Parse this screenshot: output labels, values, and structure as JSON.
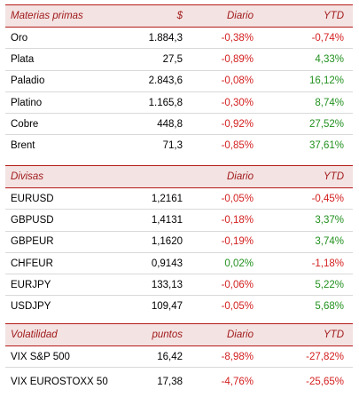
{
  "commodities": {
    "header": {
      "name": "Materias primas",
      "unit": "$",
      "daily": "Diario",
      "ytd": "YTD"
    },
    "rows": [
      {
        "name": "Oro",
        "value": "1.884,3",
        "daily": "-0,38%",
        "ytd": "-0,74%"
      },
      {
        "name": "Plata",
        "value": "27,5",
        "daily": "-0,89%",
        "ytd": "4,33%"
      },
      {
        "name": "Paladio",
        "value": "2.843,6",
        "daily": "-0,08%",
        "ytd": "16,12%"
      },
      {
        "name": "Platino",
        "value": "1.165,8",
        "daily": "-0,30%",
        "ytd": "8,74%"
      },
      {
        "name": "Cobre",
        "value": "448,8",
        "daily": "-0,92%",
        "ytd": "27,52%"
      },
      {
        "name": "Brent",
        "value": "71,3",
        "daily": "-0,85%",
        "ytd": "37,61%"
      }
    ]
  },
  "currencies": {
    "header": {
      "name": "Divisas",
      "unit": "",
      "daily": "Diario",
      "ytd": "YTD"
    },
    "rows": [
      {
        "name": "EURUSD",
        "value": "1,2161",
        "daily": "-0,05%",
        "ytd": "-0,45%"
      },
      {
        "name": "GBPUSD",
        "value": "1,4131",
        "daily": "-0,18%",
        "ytd": "3,37%"
      },
      {
        "name": "GBPEUR",
        "value": "1,1620",
        "daily": "-0,19%",
        "ytd": "3,74%"
      },
      {
        "name": "CHFEUR",
        "value": "0,9143",
        "daily": "0,02%",
        "ytd": "-1,18%"
      },
      {
        "name": "EURJPY",
        "value": "133,13",
        "daily": "-0,06%",
        "ytd": "5,22%"
      },
      {
        "name": "USDJPY",
        "value": "109,47",
        "daily": "-0,05%",
        "ytd": "5,68%"
      }
    ]
  },
  "volatility": {
    "header": {
      "name": "Volatilidad",
      "unit": "puntos",
      "daily": "Diario",
      "ytd": "YTD"
    },
    "rows": [
      {
        "name": "VIX S&P 500",
        "value": "16,42",
        "daily": "-8,98%",
        "ytd": "-27,82%"
      },
      {
        "name": "VIX EUROSTOXX 50",
        "value": "17,38",
        "daily": "-4,76%",
        "ytd": "-25,65%"
      }
    ]
  },
  "colors": {
    "negative": "#d42020",
    "positive": "#22911f",
    "header_bg": "#f4e3e3",
    "rule": "#b51a1a"
  }
}
